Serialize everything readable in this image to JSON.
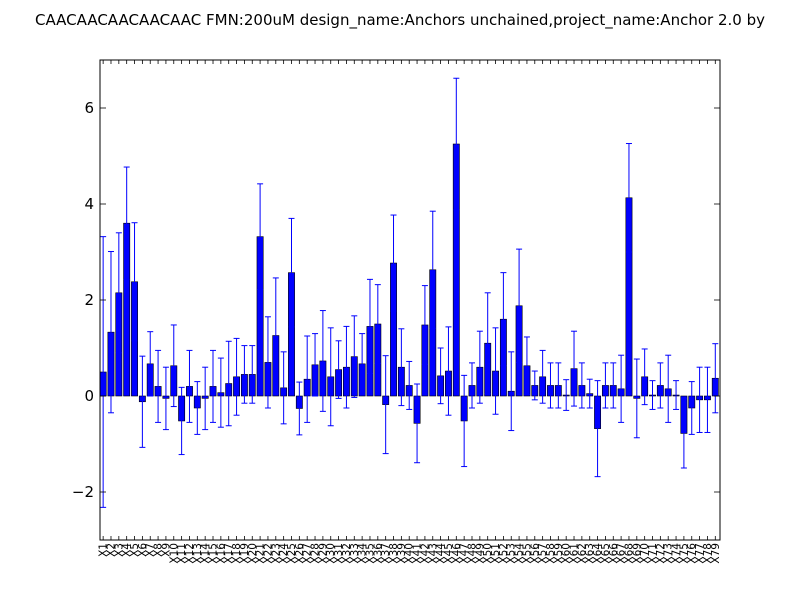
{
  "chart_data": {
    "type": "bar",
    "title": "CAACAACAACAACAAC  FMN:200uM  design_name:Anchors unchained,project_name:Anchor 2.0 by",
    "xlabel": "",
    "ylabel": "",
    "ylim": [
      -3,
      7
    ],
    "yticks": [
      -2,
      0,
      2,
      4,
      6
    ],
    "ytick_labels": [
      "−2",
      "0",
      "2",
      "4",
      "6"
    ],
    "grid": false,
    "legend": "none",
    "bar_color": "#0000ff",
    "error_color": "#0000ff",
    "categories": [
      "X1",
      "X2",
      "X3",
      "X4",
      "X5",
      "X6",
      "X7",
      "X8",
      "X9",
      "X10",
      "X11",
      "X12",
      "X13",
      "X14",
      "X15",
      "X16",
      "X17",
      "X18",
      "X19",
      "X20",
      "X21",
      "X22",
      "X23",
      "X24",
      "X25",
      "X26",
      "X27",
      "X28",
      "X29",
      "X30",
      "X31",
      "X32",
      "X33",
      "X34",
      "X35",
      "X36",
      "X37",
      "X38",
      "X39",
      "X40",
      "X41",
      "X42",
      "X43",
      "X44",
      "X45",
      "X46",
      "X47",
      "X48",
      "X49",
      "X50",
      "X51",
      "X52",
      "X53",
      "X54",
      "X55",
      "X56",
      "X57",
      "X58",
      "X59",
      "X60",
      "X61",
      "X62",
      "X63",
      "X64",
      "X65",
      "X66",
      "X67",
      "X68",
      "X69",
      "X70",
      "X71",
      "X72",
      "X73",
      "X74",
      "X75",
      "X76",
      "X77",
      "X78",
      "X79"
    ],
    "values": [
      0.5,
      1.33,
      2.15,
      3.6,
      2.38,
      -0.12,
      0.67,
      0.2,
      -0.05,
      0.63,
      -0.52,
      0.2,
      -0.25,
      -0.05,
      0.2,
      0.07,
      0.26,
      0.4,
      0.45,
      0.45,
      3.32,
      0.7,
      1.26,
      0.17,
      2.57,
      -0.26,
      0.35,
      0.65,
      0.73,
      0.4,
      0.55,
      0.6,
      0.82,
      0.67,
      1.45,
      1.5,
      -0.18,
      2.77,
      0.6,
      0.22,
      -0.57,
      1.48,
      2.63,
      0.42,
      0.52,
      5.25,
      -0.52,
      0.22,
      0.6,
      1.1,
      0.52,
      1.6,
      0.1,
      1.88,
      0.63,
      0.22,
      0.4,
      0.22,
      0.22,
      0.02,
      0.57,
      0.22,
      0.05,
      -0.68,
      0.22,
      0.22,
      0.15,
      4.13,
      -0.05,
      0.4,
      0.02,
      0.22,
      0.15,
      0.02,
      -0.78,
      -0.25,
      -0.08,
      -0.08,
      0.37
    ],
    "errors": [
      2.82,
      1.68,
      1.25,
      1.17,
      1.23,
      0.95,
      0.67,
      0.75,
      0.65,
      0.85,
      0.7,
      0.75,
      0.55,
      0.65,
      0.75,
      0.72,
      0.88,
      0.8,
      0.6,
      0.6,
      1.1,
      0.95,
      1.2,
      0.75,
      1.13,
      0.55,
      0.9,
      0.65,
      1.05,
      1.02,
      0.6,
      0.85,
      0.85,
      0.63,
      0.98,
      0.82,
      1.02,
      1.0,
      0.8,
      0.5,
      0.82,
      0.82,
      1.22,
      0.58,
      0.92,
      1.37,
      0.95,
      0.47,
      0.75,
      1.05,
      0.9,
      0.97,
      0.82,
      1.18,
      0.6,
      0.3,
      0.55,
      0.47,
      0.47,
      0.32,
      0.78,
      0.47,
      0.3,
      1.0,
      0.47,
      0.47,
      0.7,
      1.13,
      0.82,
      0.58,
      0.3,
      0.47,
      0.7,
      0.3,
      0.72,
      0.55,
      0.68,
      0.68,
      0.72
    ]
  }
}
